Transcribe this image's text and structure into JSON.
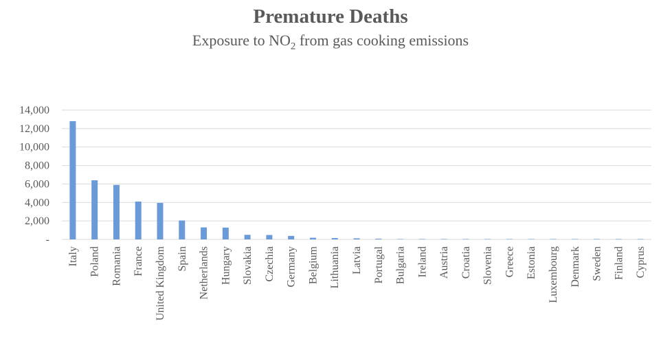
{
  "chart_data": {
    "type": "bar",
    "title": "Premature Deaths",
    "subtitle": {
      "pre": "Exposure to NO",
      "sub": "2",
      "post": " from gas cooking emissions"
    },
    "xlabel": "",
    "ylabel": "",
    "ylim": [
      0,
      14000
    ],
    "yticks": [
      0,
      2000,
      4000,
      6000,
      8000,
      10000,
      12000,
      14000
    ],
    "ytick_labels": [
      "-",
      "2,000",
      "4,000",
      "6,000",
      "8,000",
      "10,000",
      "12,000",
      "14,000"
    ],
    "grid": true,
    "legend": "none",
    "bar_color": "#6a9bd8",
    "categories": [
      "Italy",
      "Poland",
      "Romania",
      "France",
      "United Kingdom",
      "Spain",
      "Netherlands",
      "Hungary",
      "Slovakia",
      "Czechia",
      "Germany",
      "Belgium",
      "Lithuania",
      "Latvia",
      "Portugal",
      "Bulgaria",
      "Ireland",
      "Austria",
      "Croatia",
      "Slovenia",
      "Greece",
      "Estonia",
      "Luxembourg",
      "Denmark",
      "Sweden",
      "Finland",
      "Cyprus"
    ],
    "values": [
      12800,
      6400,
      5900,
      4100,
      3950,
      2050,
      1300,
      1280,
      500,
      480,
      380,
      180,
      150,
      120,
      80,
      40,
      30,
      20,
      10,
      10,
      5,
      5,
      3,
      3,
      2,
      2,
      1
    ]
  }
}
